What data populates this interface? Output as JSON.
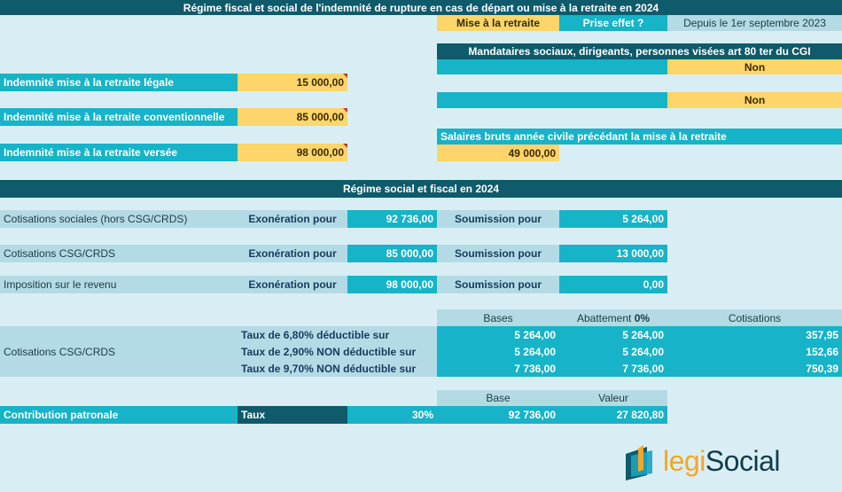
{
  "header": {
    "title": "Régime fiscal et social de l'indemnité de rupture en cas de départ ou mise à la retraite en 2024"
  },
  "type": {
    "value": "Mise à la retraite",
    "effect_label": "Prise effet ?",
    "effect_value": "Depuis le 1er septembre 2023"
  },
  "mandataires": {
    "label": "Mandataires sociaux, dirigeants, personnes visées art 80 ter du CGI",
    "value": "Non"
  },
  "second_question": {
    "label": "",
    "value": "Non"
  },
  "salaires": {
    "label": "Salaires bruts année civile précédant la mise à la retraite",
    "value": "49 000,00"
  },
  "indemnites": [
    {
      "label": "Indemnité mise à la retraite légale",
      "value": "15 000,00"
    },
    {
      "label": "Indemnité mise à la retraite conventionnelle",
      "value": "85 000,00"
    },
    {
      "label": "Indemnité mise à la retraite versée",
      "value": "98 000,00"
    }
  ],
  "regime": {
    "title": "Régime social et fiscal en 2024",
    "rows": [
      {
        "label": "Cotisations sociales (hors CSG/CRDS)",
        "exo_label": "Exonération pour",
        "exo": "92 736,00",
        "sou_label": "Soumission pour",
        "sou": "5 264,00"
      },
      {
        "label": "Cotisations CSG/CRDS",
        "exo_label": "Exonération pour",
        "exo": "85 000,00",
        "sou_label": "Soumission pour",
        "sou": "13 000,00"
      },
      {
        "label": "Imposition sur le revenu",
        "exo_label": "Exonération pour",
        "exo": "98 000,00",
        "sou_label": "Soumission pour",
        "sou": "0,00"
      }
    ]
  },
  "csg": {
    "label": "Cotisations CSG/CRDS",
    "headers": {
      "bases": "Bases",
      "abattement": "Abattement",
      "abattement_rate": "0%",
      "cotisations": "Cotisations"
    },
    "rows": [
      {
        "label": "Taux de 6,80% déductible sur",
        "base": "5 264,00",
        "abattement": "5 264,00",
        "cotisation": "357,95"
      },
      {
        "label": "Taux de 2,90% NON déductible sur",
        "base": "5 264,00",
        "abattement": "5 264,00",
        "cotisation": "152,66"
      },
      {
        "label": "Taux de 9,70% NON déductible sur",
        "base": "7 736,00",
        "abattement": "7 736,00",
        "cotisation": "750,39"
      }
    ]
  },
  "contribution": {
    "label": "Contribution patronale",
    "taux_label": "Taux",
    "taux": "30%",
    "base_header": "Base",
    "valeur_header": "Valeur",
    "base": "92 736,00",
    "valeur": "27 820,80"
  },
  "logo": {
    "text_legi": "legi",
    "text_social": "Social"
  },
  "colors": {
    "teal": "#17b3c8",
    "dark_teal": "#0f5a6b",
    "yellow": "#fdd56a",
    "light_blue": "#b4dbe5",
    "background": "#d9eef4",
    "navy": "#173a5e"
  }
}
